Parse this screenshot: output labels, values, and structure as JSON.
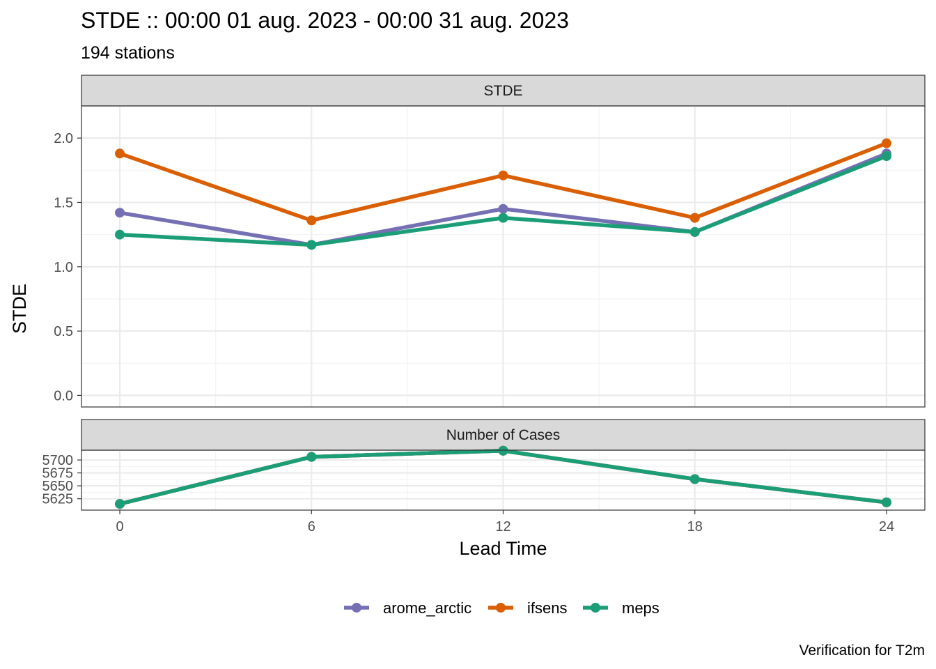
{
  "title": "STDE :: 00:00 01 aug. 2023 - 00:00 31 aug. 2023",
  "subtitle": "194 stations",
  "caption": "Verification for T2m",
  "chart_data": [
    {
      "type": "line",
      "panel": "STDE",
      "ylabel": "STDE",
      "xlabel": "Lead Time",
      "x": [
        0,
        6,
        12,
        18,
        24
      ],
      "xlim": [
        -1.2,
        25.2
      ],
      "ylim": [
        -0.09,
        2.25
      ],
      "yticks": [
        0.0,
        0.5,
        1.0,
        1.5,
        2.0
      ],
      "ytick_labels": [
        "0.0",
        "0.5",
        "1.0",
        "1.5",
        "2.0"
      ],
      "series": [
        {
          "name": "arome_arctic",
          "color": "#7570B3",
          "values": [
            1.42,
            1.17,
            1.45,
            1.27,
            1.88
          ]
        },
        {
          "name": "ifsens",
          "color": "#D95F02",
          "values": [
            1.88,
            1.36,
            1.71,
            1.38,
            1.96
          ]
        },
        {
          "name": "meps",
          "color": "#1B9E77",
          "values": [
            1.25,
            1.17,
            1.38,
            1.27,
            1.86
          ]
        }
      ],
      "grid": true
    },
    {
      "type": "line",
      "panel": "Number of Cases",
      "x": [
        0,
        6,
        12,
        18,
        24
      ],
      "xticks": [
        0,
        6,
        12,
        18,
        24
      ],
      "xtick_labels": [
        "0",
        "6",
        "12",
        "18",
        "24"
      ],
      "ylim": [
        5603,
        5719
      ],
      "yticks": [
        5625,
        5650,
        5675,
        5700
      ],
      "ytick_labels": [
        "5625",
        "5650",
        "5675",
        "5700"
      ],
      "series": [
        {
          "name": "arome_arctic",
          "color": "#7570B3",
          "values": [
            5615,
            5706,
            5718,
            5663,
            5618
          ]
        },
        {
          "name": "ifsens",
          "color": "#D95F02",
          "values": [
            5615,
            5706,
            5718,
            5663,
            5618
          ]
        },
        {
          "name": "meps",
          "color": "#1B9E77",
          "values": [
            5615,
            5706,
            5718,
            5663,
            5618
          ]
        }
      ],
      "grid": true
    }
  ],
  "legend": {
    "position": "bottom",
    "items": [
      {
        "label": "arome_arctic",
        "color": "#7570B3"
      },
      {
        "label": "ifsens",
        "color": "#D95F02"
      },
      {
        "label": "meps",
        "color": "#1B9E77"
      }
    ]
  }
}
